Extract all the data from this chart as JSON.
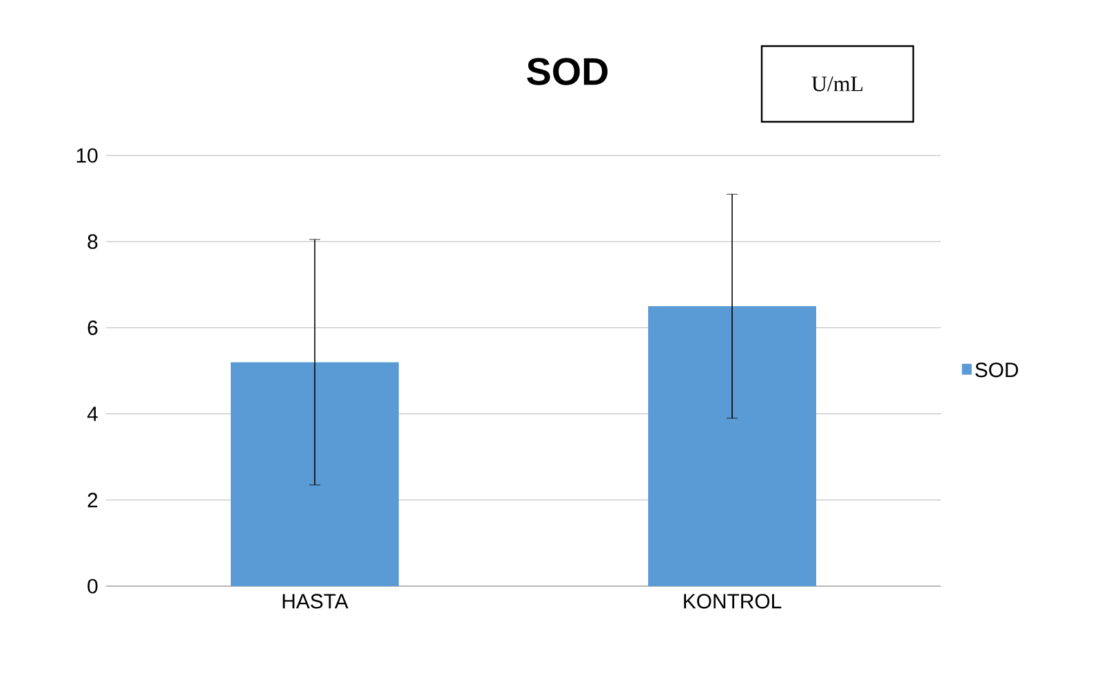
{
  "chart_data": {
    "type": "bar",
    "title": "SOD",
    "annotations": [
      "U/mL"
    ],
    "categories": [
      "HASTA",
      "KONTROL"
    ],
    "series": [
      {
        "name": "SOD",
        "color": "#5b9bd5",
        "values": [
          5.2,
          6.5
        ],
        "errors": [
          2.85,
          2.6
        ]
      }
    ],
    "ylim": [
      0,
      10
    ],
    "yticks": [
      0,
      2,
      4,
      6,
      8,
      10
    ],
    "grid": "y",
    "legend": "right"
  }
}
